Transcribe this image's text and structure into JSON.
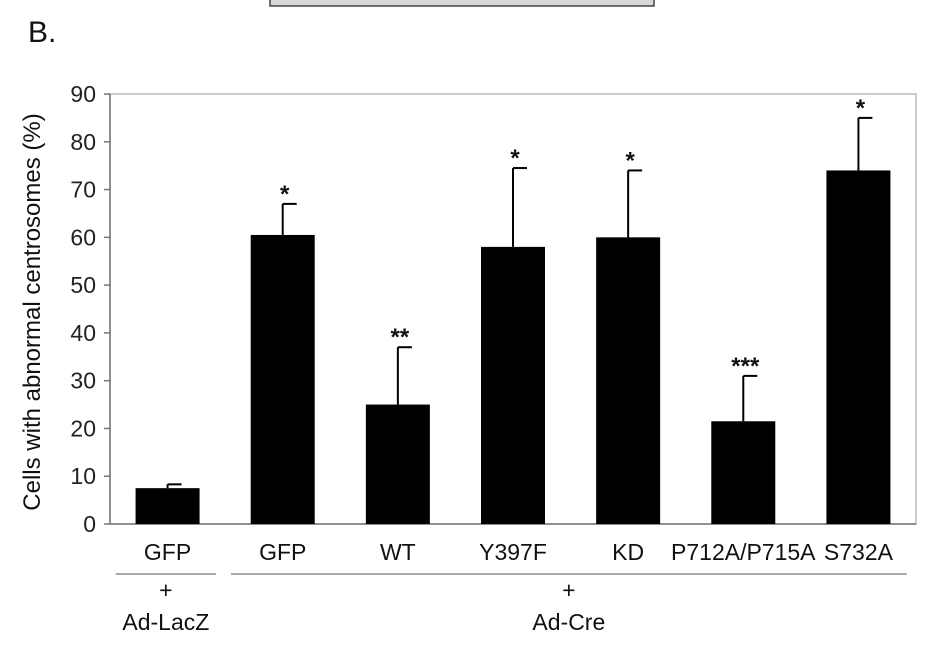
{
  "panel_label": "B.",
  "chart_data": {
    "type": "bar",
    "ylabel": "Cells with abnormal centrosomes (%)",
    "ylim": [
      0,
      90
    ],
    "yticks": [
      0,
      10,
      20,
      30,
      40,
      50,
      60,
      70,
      80,
      90
    ],
    "categories": [
      "GFP",
      "GFP",
      "WT",
      "Y397F",
      "KD",
      "P712A/P715A",
      "S732A"
    ],
    "values": [
      7.5,
      60.5,
      25,
      58,
      60,
      21.5,
      74
    ],
    "error": [
      0.8,
      6.5,
      12,
      16.5,
      14,
      9.5,
      11
    ],
    "significance": [
      "",
      "*",
      "**",
      "*",
      "*",
      "***",
      "*"
    ],
    "bar_color": "#000000",
    "grid": false,
    "groups": [
      {
        "plus": "+",
        "label": "Ad-LacZ",
        "categories": [
          0
        ]
      },
      {
        "plus": "+",
        "label": "Ad-Cre",
        "categories": [
          1,
          2,
          3,
          4,
          5,
          6
        ]
      }
    ]
  }
}
